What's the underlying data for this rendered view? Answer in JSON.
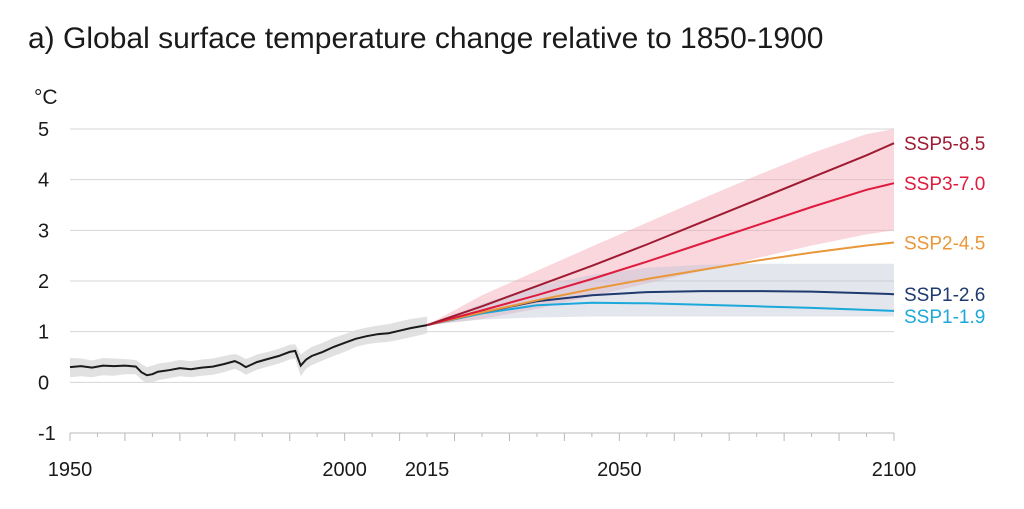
{
  "chart_data": {
    "type": "line",
    "title": "a) Global surface temperature change relative to 1850-1900",
    "ylabel": "°C",
    "xlabel": "",
    "xlim": [
      1950,
      2100
    ],
    "ylim": [
      -1,
      5
    ],
    "yticks": [
      -1,
      0,
      1,
      2,
      3,
      4,
      5
    ],
    "yticklabels": [
      "-1",
      "0",
      "1",
      "2",
      "3",
      "4",
      "5"
    ],
    "xticks": [
      1950,
      2000,
      2015,
      2050,
      2100
    ],
    "xticklabels": [
      "1950",
      "2000",
      "2015",
      "2050",
      "2100"
    ],
    "grid": true,
    "historical": {
      "color": "#1a1a1a",
      "x": [
        1950,
        1952,
        1954,
        1956,
        1958,
        1960,
        1962,
        1963,
        1964,
        1965,
        1966,
        1968,
        1970,
        1972,
        1974,
        1976,
        1978,
        1980,
        1981,
        1982,
        1983,
        1984,
        1986,
        1988,
        1990,
        1991,
        1992,
        1993,
        1994,
        1996,
        1998,
        2000,
        2002,
        2004,
        2006,
        2008,
        2010,
        2012,
        2014,
        2015
      ],
      "y": [
        0.3,
        0.32,
        0.29,
        0.33,
        0.32,
        0.33,
        0.31,
        0.2,
        0.14,
        0.16,
        0.21,
        0.24,
        0.28,
        0.26,
        0.29,
        0.31,
        0.36,
        0.42,
        0.37,
        0.3,
        0.35,
        0.4,
        0.46,
        0.52,
        0.6,
        0.62,
        0.33,
        0.45,
        0.52,
        0.6,
        0.7,
        0.78,
        0.86,
        0.91,
        0.95,
        0.97,
        1.02,
        1.07,
        1.11,
        1.13
      ],
      "band": {
        "upper": [
          0.48,
          0.47,
          0.43,
          0.48,
          0.47,
          0.46,
          0.44,
          0.36,
          0.3,
          0.33,
          0.37,
          0.4,
          0.44,
          0.42,
          0.45,
          0.47,
          0.52,
          0.56,
          0.52,
          0.46,
          0.5,
          0.55,
          0.6,
          0.66,
          0.74,
          0.75,
          0.55,
          0.63,
          0.7,
          0.78,
          0.88,
          0.95,
          1.03,
          1.08,
          1.12,
          1.15,
          1.2,
          1.25,
          1.28,
          1.3
        ],
        "lower": [
          0.1,
          0.12,
          0.1,
          0.14,
          0.13,
          0.16,
          0.16,
          0.05,
          -0.02,
          0.0,
          0.04,
          0.08,
          0.12,
          0.1,
          0.13,
          0.15,
          0.2,
          0.27,
          0.22,
          0.15,
          0.2,
          0.25,
          0.31,
          0.37,
          0.45,
          0.47,
          0.12,
          0.27,
          0.34,
          0.43,
          0.52,
          0.6,
          0.7,
          0.75,
          0.78,
          0.8,
          0.84,
          0.89,
          0.94,
          0.97
        ]
      }
    },
    "series": [
      {
        "name": "SSP5-8.5",
        "color": "#9e1b32",
        "x": [
          2015,
          2025,
          2035,
          2045,
          2055,
          2065,
          2075,
          2085,
          2095,
          2100
        ],
        "y": [
          1.13,
          1.5,
          1.9,
          2.3,
          2.72,
          3.16,
          3.6,
          4.04,
          4.48,
          4.72
        ]
      },
      {
        "name": "SSP3-7.0",
        "color": "#df1b3e",
        "x": [
          2015,
          2025,
          2035,
          2045,
          2055,
          2065,
          2075,
          2085,
          2095,
          2100
        ],
        "y": [
          1.13,
          1.42,
          1.72,
          2.04,
          2.38,
          2.74,
          3.1,
          3.46,
          3.8,
          3.93
        ]
      },
      {
        "name": "SSP2-4.5",
        "color": "#e8983a",
        "x": [
          2015,
          2025,
          2035,
          2045,
          2055,
          2065,
          2075,
          2085,
          2095,
          2100
        ],
        "y": [
          1.13,
          1.38,
          1.62,
          1.84,
          2.04,
          2.22,
          2.4,
          2.56,
          2.7,
          2.76
        ]
      },
      {
        "name": "SSP1-2.6",
        "color": "#1f3a6e",
        "x": [
          2015,
          2025,
          2035,
          2045,
          2055,
          2065,
          2075,
          2085,
          2095,
          2100
        ],
        "y": [
          1.13,
          1.38,
          1.6,
          1.72,
          1.78,
          1.8,
          1.8,
          1.79,
          1.76,
          1.74
        ]
      },
      {
        "name": "SSP1-1.9",
        "color": "#1ca8db",
        "x": [
          2015,
          2025,
          2035,
          2045,
          2055,
          2065,
          2075,
          2085,
          2095,
          2100
        ],
        "y": [
          1.13,
          1.36,
          1.52,
          1.57,
          1.56,
          1.53,
          1.5,
          1.47,
          1.43,
          1.41
        ]
      }
    ],
    "bands": [
      {
        "for": "SSP3-7.0",
        "color": "#f4a5b3",
        "x": [
          2015,
          2025,
          2035,
          2045,
          2055,
          2065,
          2075,
          2085,
          2095,
          2100
        ],
        "upper": [
          1.13,
          1.72,
          2.2,
          2.68,
          3.15,
          3.62,
          4.08,
          4.52,
          4.9,
          5.0
        ],
        "lower": [
          1.13,
          1.25,
          1.45,
          1.7,
          1.95,
          2.2,
          2.45,
          2.7,
          2.92,
          3.0
        ]
      },
      {
        "for": "SSP1-2.6",
        "color": "#c0c8d6",
        "x": [
          2015,
          2025,
          2035,
          2045,
          2055,
          2065,
          2075,
          2085,
          2095,
          2100
        ],
        "upper": [
          1.13,
          1.55,
          1.9,
          2.12,
          2.26,
          2.32,
          2.34,
          2.34,
          2.34,
          2.34
        ],
        "lower": [
          1.13,
          1.24,
          1.28,
          1.3,
          1.3,
          1.3,
          1.3,
          1.3,
          1.3,
          1.3
        ]
      }
    ]
  }
}
